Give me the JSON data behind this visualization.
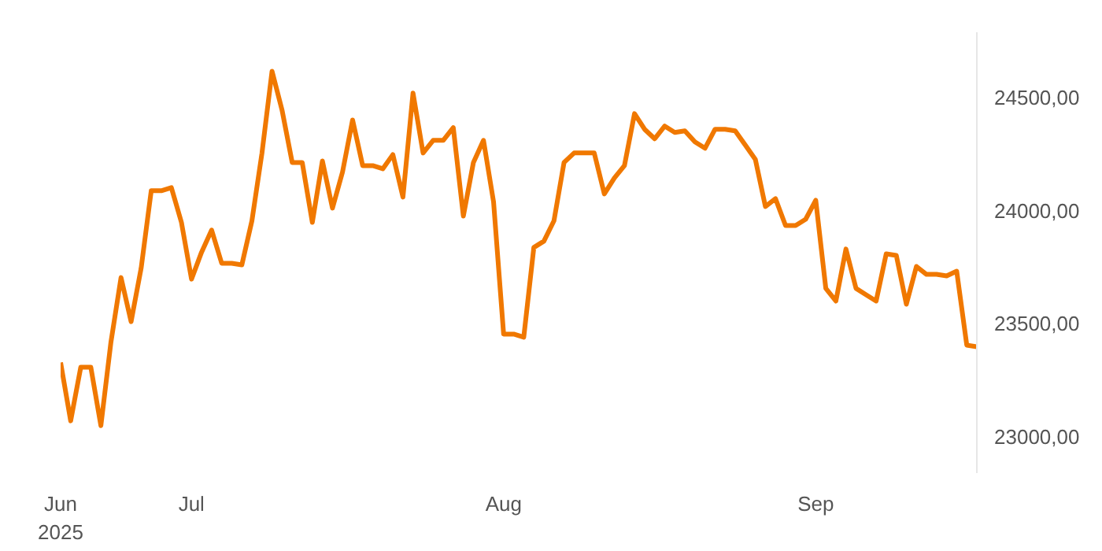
{
  "chart_data": {
    "type": "line",
    "x": [
      "2025-06-18",
      "2025-06-19",
      "2025-06-20",
      "2025-06-21",
      "2025-06-22",
      "2025-06-23",
      "2025-06-24",
      "2025-06-25",
      "2025-06-26",
      "2025-06-27",
      "2025-06-28",
      "2025-06-29",
      "2025-06-30",
      "2025-07-01",
      "2025-07-02",
      "2025-07-03",
      "2025-07-04",
      "2025-07-05",
      "2025-07-06",
      "2025-07-07",
      "2025-07-08",
      "2025-07-09",
      "2025-07-10",
      "2025-07-11",
      "2025-07-12",
      "2025-07-13",
      "2025-07-14",
      "2025-07-15",
      "2025-07-16",
      "2025-07-17",
      "2025-07-18",
      "2025-07-19",
      "2025-07-20",
      "2025-07-21",
      "2025-07-22",
      "2025-07-23",
      "2025-07-24",
      "2025-07-25",
      "2025-07-26",
      "2025-07-27",
      "2025-07-28",
      "2025-07-29",
      "2025-07-30",
      "2025-07-31",
      "2025-08-01",
      "2025-08-02",
      "2025-08-03",
      "2025-08-04",
      "2025-08-05",
      "2025-08-06",
      "2025-08-07",
      "2025-08-08",
      "2025-08-09",
      "2025-08-10",
      "2025-08-11",
      "2025-08-12",
      "2025-08-13",
      "2025-08-14",
      "2025-08-15",
      "2025-08-16",
      "2025-08-17",
      "2025-08-18",
      "2025-08-19",
      "2025-08-20",
      "2025-08-21",
      "2025-08-22",
      "2025-08-23",
      "2025-08-24",
      "2025-08-25",
      "2025-08-26",
      "2025-08-27",
      "2025-08-28",
      "2025-08-29",
      "2025-08-30",
      "2025-08-31",
      "2025-09-01",
      "2025-09-02",
      "2025-09-03",
      "2025-09-04",
      "2025-09-05",
      "2025-09-06",
      "2025-09-07",
      "2025-09-08",
      "2025-09-09",
      "2025-09-10",
      "2025-09-11",
      "2025-09-12",
      "2025-09-13",
      "2025-09-14",
      "2025-09-15",
      "2025-09-16",
      "2025-09-17"
    ],
    "series": [
      {
        "color": "#f07800",
        "values": [
          23329,
          23071,
          23308,
          23308,
          23050,
          23420,
          23705,
          23510,
          23747,
          24089,
          24089,
          24103,
          23949,
          23698,
          23817,
          23915,
          23768,
          23768,
          23761,
          23956,
          24256,
          24618,
          24444,
          24214,
          24214,
          23949,
          24221,
          24012,
          24172,
          24402,
          24200,
          24200,
          24186,
          24249,
          24061,
          24521,
          24256,
          24312,
          24312,
          24368,
          23977,
          24214,
          24312,
          24040,
          23455,
          23455,
          23441,
          23838,
          23866,
          23956,
          24214,
          24256,
          24256,
          24256,
          24075,
          24145,
          24200,
          24430,
          24361,
          24319,
          24375,
          24347,
          24354,
          24305,
          24277,
          24361,
          24361,
          24354,
          24291,
          24228,
          24019,
          24054,
          23935,
          23935,
          23963,
          24047,
          23657,
          23601,
          23831,
          23657,
          23629,
          23601,
          23810,
          23803,
          23587,
          23754,
          23719,
          23719,
          23712,
          23733,
          23406,
          23399
        ]
      }
    ],
    "xticks": [
      {
        "value": "2025-06-18",
        "label": "Jun\n2025"
      },
      {
        "value": "2025-07-01",
        "label": "Jul"
      },
      {
        "value": "2025-08-01",
        "label": "Aug"
      },
      {
        "value": "2025-09-01",
        "label": "Sep"
      }
    ],
    "yticks": [
      {
        "value": 23000,
        "label": "23000,00"
      },
      {
        "value": 23500,
        "label": "23500,00"
      },
      {
        "value": 24000,
        "label": "24000,00"
      },
      {
        "value": 24500,
        "label": "24500,00"
      }
    ],
    "xlim": [
      "2025-06-18",
      "2025-09-17"
    ],
    "ylim": [
      22840,
      24790
    ],
    "grid": false
  }
}
